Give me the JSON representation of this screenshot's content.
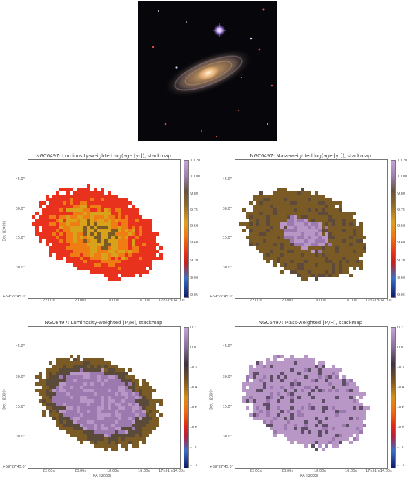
{
  "galaxy": {
    "object": "NGC6497"
  },
  "colorbars": {
    "age_ticks": [
      "10.20",
      "10.00",
      "9.80",
      "9.75",
      "9.60",
      "9.40",
      "9.20",
      "9.00",
      "9.05"
    ],
    "metal_ticks": [
      "0.2",
      "0.0",
      "-0.2",
      "-0.4",
      "-0.6",
      "-0.8",
      "-1.0",
      "-1.2"
    ]
  },
  "axes": {
    "y_ticks": [
      "45.0\"",
      "30.0\"",
      "15.0\"",
      "30.0\"",
      "+59°27'45.0\""
    ],
    "x_ticks": [
      "22.00s",
      "20.00s",
      "18.00s",
      "16.00s",
      "17h51m14.00s"
    ],
    "y_label": "Dec (J2000)",
    "x_label": "RA (J2000)"
  },
  "panels": [
    {
      "title": "NGC6497: Luminosity-weighted log(age [yr]), stackmap",
      "scheme": "age_lum"
    },
    {
      "title": "NGC6497: Mass-weighted log(age [yr]), stackmap",
      "scheme": "age_mass"
    },
    {
      "title": "NGC6497: Luminosity-weighted [M/H], stackmap",
      "scheme": "met_lum"
    },
    {
      "title": "NGC6497: Mass-weighted [M/H], stackmap",
      "scheme": "met_mass"
    }
  ],
  "colors": {
    "lum_age_outer": "#e8321e",
    "lum_age_mid": "#f07d14",
    "lum_age_core": "#d8a21a",
    "brown": "#7a5a25",
    "purple": "#9c7ab0",
    "violet": "#b896c6"
  }
}
